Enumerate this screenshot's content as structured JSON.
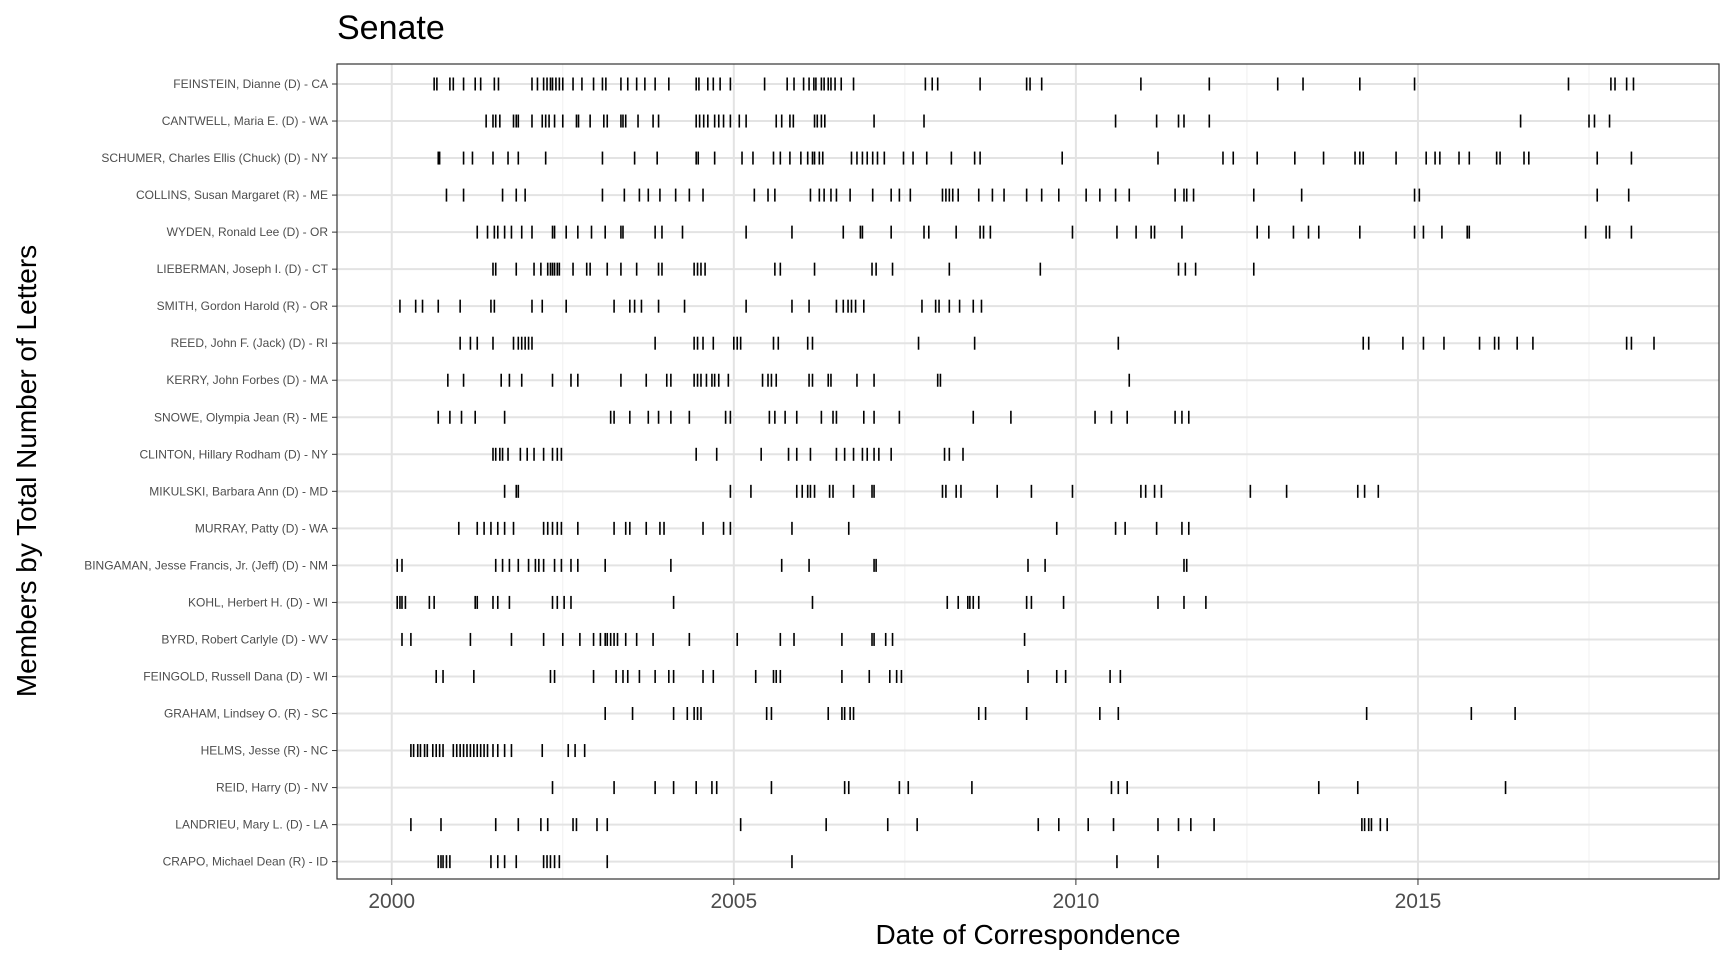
{
  "chart_data": {
    "type": "scatter",
    "mark": "tick",
    "title": "Senate",
    "xlabel": "Date of Correspondence",
    "ylabel": "Members by Total Number of Letters",
    "xlim": [
      1999.2,
      2019.4
    ],
    "xticks": [
      2000,
      2005,
      2010,
      2015
    ],
    "xtick_labels": [
      "2000",
      "2005",
      "2010",
      "2015"
    ],
    "grid": true,
    "colors": {
      "tick": "#000000",
      "grid_major": "#e3e3e3",
      "grid_minor": "#f0f0f0",
      "border": "#333333"
    },
    "series": [
      {
        "name": "FEINSTEIN, Dianne (D) - CA",
        "x": [
          2000.62,
          2000.66,
          2000.85,
          2000.9,
          2001.05,
          2001.22,
          2001.3,
          2001.5,
          2001.56,
          2002.05,
          2002.13,
          2002.22,
          2002.27,
          2002.32,
          2002.35,
          2002.4,
          2002.45,
          2002.5,
          2002.65,
          2002.78,
          2002.95,
          2003.08,
          2003.13,
          2003.35,
          2003.45,
          2003.58,
          2003.7,
          2003.85,
          2004.05,
          2004.45,
          2004.49,
          2004.62,
          2004.7,
          2004.8,
          2004.95,
          2005.45,
          2005.78,
          2005.88,
          2006.02,
          2006.1,
          2006.17,
          2006.2,
          2006.28,
          2006.32,
          2006.38,
          2006.42,
          2006.48,
          2006.57,
          2006.75,
          2007.8,
          2007.9,
          2007.98,
          2008.6,
          2009.28,
          2009.33,
          2009.5,
          2010.95,
          2011.95,
          2012.95,
          2013.32,
          2014.15,
          2014.95,
          2017.2,
          2017.82,
          2017.88,
          2018.05,
          2018.15
        ]
      },
      {
        "name": "CANTWELL, Maria E. (D) - WA",
        "x": [
          2001.38,
          2001.48,
          2001.52,
          2001.58,
          2001.78,
          2001.82,
          2001.85,
          2002.05,
          2002.2,
          2002.25,
          2002.3,
          2002.38,
          2002.5,
          2002.7,
          2002.73,
          2002.9,
          2003.1,
          2003.15,
          2003.35,
          2003.38,
          2003.42,
          2003.6,
          2003.82,
          2003.9,
          2004.45,
          2004.5,
          2004.56,
          2004.62,
          2004.72,
          2004.78,
          2004.85,
          2004.95,
          2005.08,
          2005.18,
          2005.62,
          2005.7,
          2005.82,
          2005.87,
          2006.18,
          2006.22,
          2006.28,
          2006.33,
          2007.05,
          2007.78,
          2010.58,
          2011.18,
          2011.5,
          2011.58,
          2011.95,
          2016.5,
          2017.5,
          2017.58,
          2017.8
        ]
      },
      {
        "name": "SCHUMER, Charles Ellis (Chuck) (D) - NY",
        "x": [
          2000.68,
          2000.7,
          2001.05,
          2001.18,
          2001.48,
          2001.7,
          2001.85,
          2002.25,
          2003.08,
          2003.55,
          2003.88,
          2004.45,
          2004.48,
          2004.72,
          2005.12,
          2005.28,
          2005.58,
          2005.68,
          2005.82,
          2005.98,
          2006.08,
          2006.15,
          2006.18,
          2006.25,
          2006.3,
          2006.72,
          2006.8,
          2006.88,
          2006.95,
          2007.03,
          2007.1,
          2007.2,
          2007.48,
          2007.62,
          2007.82,
          2008.18,
          2008.52,
          2008.6,
          2009.8,
          2011.2,
          2012.15,
          2012.3,
          2012.65,
          2013.2,
          2013.62,
          2014.08,
          2014.15,
          2014.2,
          2014.68,
          2015.12,
          2015.25,
          2015.32,
          2015.6,
          2015.75,
          2016.15,
          2016.2,
          2016.55,
          2016.62,
          2017.62,
          2018.12
        ]
      },
      {
        "name": "COLLINS, Susan Margaret (R) - ME",
        "x": [
          2000.8,
          2001.05,
          2001.62,
          2001.82,
          2001.95,
          2003.08,
          2003.4,
          2003.62,
          2003.75,
          2003.92,
          2004.15,
          2004.35,
          2004.55,
          2005.3,
          2005.5,
          2005.6,
          2006.12,
          2006.25,
          2006.32,
          2006.42,
          2006.5,
          2006.7,
          2007.03,
          2007.3,
          2007.42,
          2007.58,
          2008.05,
          2008.1,
          2008.15,
          2008.2,
          2008.28,
          2008.58,
          2008.78,
          2008.95,
          2009.28,
          2009.5,
          2009.75,
          2010.15,
          2010.35,
          2010.58,
          2010.78,
          2011.45,
          2011.58,
          2011.62,
          2011.72,
          2012.6,
          2013.3,
          2014.95,
          2015.02,
          2017.62,
          2018.08
        ]
      },
      {
        "name": "WYDEN, Ronald Lee (D) - OR",
        "x": [
          2001.25,
          2001.4,
          2001.5,
          2001.55,
          2001.65,
          2001.75,
          2001.9,
          2002.05,
          2002.35,
          2002.38,
          2002.55,
          2002.72,
          2002.92,
          2003.12,
          2003.35,
          2003.38,
          2003.85,
          2003.95,
          2004.25,
          2005.18,
          2005.85,
          2006.6,
          2006.85,
          2006.88,
          2007.3,
          2007.78,
          2007.85,
          2008.25,
          2008.6,
          2008.65,
          2008.75,
          2009.95,
          2010.6,
          2010.88,
          2011.1,
          2011.15,
          2011.55,
          2012.65,
          2012.82,
          2013.18,
          2013.4,
          2013.55,
          2014.15,
          2014.95,
          2015.08,
          2015.35,
          2015.72,
          2015.75,
          2017.45,
          2017.75,
          2017.8,
          2018.12
        ]
      },
      {
        "name": "LIEBERMAN, Joseph I. (D) - CT",
        "x": [
          2001.48,
          2001.52,
          2001.82,
          2002.08,
          2002.18,
          2002.28,
          2002.32,
          2002.35,
          2002.38,
          2002.42,
          2002.45,
          2002.65,
          2002.85,
          2002.9,
          2003.15,
          2003.35,
          2003.58,
          2003.9,
          2003.95,
          2004.42,
          2004.47,
          2004.52,
          2004.58,
          2005.6,
          2005.68,
          2006.18,
          2007.02,
          2007.08,
          2007.32,
          2008.15,
          2009.48,
          2011.5,
          2011.6,
          2011.75,
          2012.6
        ]
      },
      {
        "name": "SMITH, Gordon Harold (R) - OR",
        "x": [
          2000.12,
          2000.35,
          2000.45,
          2000.68,
          2001,
          2001.45,
          2001.5,
          2002.05,
          2002.2,
          2002.55,
          2003.25,
          2003.48,
          2003.55,
          2003.65,
          2003.9,
          2004.28,
          2005.18,
          2005.85,
          2006.1,
          2006.5,
          2006.6,
          2006.67,
          2006.72,
          2006.78,
          2006.9,
          2007.75,
          2007.95,
          2008,
          2008.15,
          2008.3,
          2008.5,
          2008.62
        ]
      },
      {
        "name": "REED, John F. (Jack) (D) - RI",
        "x": [
          2001,
          2001.15,
          2001.25,
          2001.48,
          2001.78,
          2001.85,
          2001.9,
          2001.95,
          2002,
          2002.05,
          2003.85,
          2004.42,
          2004.47,
          2004.55,
          2004.7,
          2005,
          2005.05,
          2005.1,
          2005.58,
          2005.65,
          2006.08,
          2006.15,
          2007.7,
          2008.52,
          2010.62,
          2014.2,
          2014.28,
          2014.78,
          2015.08,
          2015.38,
          2015.9,
          2016.12,
          2016.18,
          2016.45,
          2016.68,
          2018.05,
          2018.12,
          2018.45
        ]
      },
      {
        "name": "KERRY, John Forbes (D) - MA",
        "x": [
          2000.82,
          2001.05,
          2001.6,
          2001.72,
          2001.9,
          2002.35,
          2002.62,
          2002.72,
          2003.35,
          2003.72,
          2004.02,
          2004.08,
          2004.42,
          2004.47,
          2004.52,
          2004.6,
          2004.68,
          2004.72,
          2004.78,
          2004.92,
          2005.42,
          2005.5,
          2005.55,
          2005.62,
          2006.1,
          2006.15,
          2006.38,
          2006.42,
          2006.8,
          2007.05,
          2007.98,
          2008.02,
          2010.78
        ]
      },
      {
        "name": "SNOWE, Olympia Jean (R) - ME",
        "x": [
          2000.68,
          2000.85,
          2001.02,
          2001.22,
          2001.65,
          2003.2,
          2003.25,
          2003.48,
          2003.75,
          2003.9,
          2004.08,
          2004.35,
          2004.88,
          2004.95,
          2005.52,
          2005.6,
          2005.75,
          2005.92,
          2006.28,
          2006.45,
          2006.5,
          2006.9,
          2007.05,
          2007.42,
          2008.5,
          2009.05,
          2010.28,
          2010.52,
          2010.75,
          2011.45,
          2011.55,
          2011.65
        ]
      },
      {
        "name": "CLINTON, Hillary Rodham (D) - NY",
        "x": [
          2001.48,
          2001.52,
          2001.58,
          2001.62,
          2001.7,
          2001.88,
          2001.98,
          2002.08,
          2002.22,
          2002.35,
          2002.42,
          2002.48,
          2004.45,
          2004.75,
          2005.4,
          2005.8,
          2005.92,
          2006.12,
          2006.5,
          2006.62,
          2006.75,
          2006.88,
          2006.95,
          2007.05,
          2007.12,
          2007.3,
          2008.08,
          2008.15,
          2008.35
        ]
      },
      {
        "name": "MIKULSKI, Barbara Ann (D) - MD",
        "x": [
          2001.65,
          2001.82,
          2001.85,
          2004.95,
          2005.25,
          2005.92,
          2006,
          2006.08,
          2006.12,
          2006.18,
          2006.4,
          2006.45,
          2006.75,
          2007.02,
          2007.05,
          2008.05,
          2008.1,
          2008.25,
          2008.32,
          2008.85,
          2009.35,
          2009.95,
          2010.95,
          2011.02,
          2011.15,
          2011.25,
          2012.55,
          2013.08,
          2014.12,
          2014.22,
          2014.42
        ]
      },
      {
        "name": "MURRAY, Patty (D) - WA",
        "x": [
          2000.98,
          2001.25,
          2001.35,
          2001.45,
          2001.55,
          2001.65,
          2001.78,
          2002.22,
          2002.28,
          2002.35,
          2002.42,
          2002.48,
          2002.72,
          2003.25,
          2003.42,
          2003.48,
          2003.72,
          2003.92,
          2003.98,
          2004.55,
          2004.85,
          2004.95,
          2005.85,
          2006.68,
          2009.72,
          2010.58,
          2010.72,
          2011.18,
          2011.55,
          2011.65
        ]
      },
      {
        "name": "BINGAMAN, Jesse Francis, Jr. (Jeff) (D) - NM",
        "x": [
          2000.08,
          2000.15,
          2001.52,
          2001.62,
          2001.72,
          2001.85,
          2002,
          2002.1,
          2002.15,
          2002.22,
          2002.38,
          2002.48,
          2002.62,
          2002.72,
          2003.12,
          2004.08,
          2005.7,
          2006.1,
          2007.05,
          2007.08,
          2009.3,
          2009.55,
          2011.58,
          2011.62
        ]
      },
      {
        "name": "KOHL, Herbert H. (D) - WI",
        "x": [
          2000.08,
          2000.12,
          2000.15,
          2000.2,
          2000.55,
          2000.62,
          2001.22,
          2001.25,
          2001.48,
          2001.55,
          2001.72,
          2002.35,
          2002.42,
          2002.52,
          2002.62,
          2004.12,
          2006.15,
          2008.12,
          2008.28,
          2008.42,
          2008.45,
          2008.5,
          2008.58,
          2009.28,
          2009.35,
          2009.82,
          2011.2,
          2011.58,
          2011.9
        ]
      },
      {
        "name": "BYRD, Robert Carlyle (D) - WV",
        "x": [
          2000.15,
          2000.28,
          2001.15,
          2001.75,
          2002.22,
          2002.5,
          2002.75,
          2002.95,
          2003.05,
          2003.12,
          2003.15,
          2003.2,
          2003.25,
          2003.3,
          2003.42,
          2003.58,
          2003.82,
          2004.35,
          2005.05,
          2005.68,
          2005.88,
          2006.58,
          2007.02,
          2007.05,
          2007.22,
          2007.32,
          2009.25
        ]
      },
      {
        "name": "FEINGOLD, Russell Dana (D) - WI",
        "x": [
          2000.65,
          2000.75,
          2001.2,
          2002.32,
          2002.38,
          2002.95,
          2003.28,
          2003.38,
          2003.45,
          2003.62,
          2003.85,
          2004.05,
          2004.12,
          2004.55,
          2004.7,
          2005.32,
          2005.58,
          2005.62,
          2005.68,
          2006.58,
          2006.98,
          2007.28,
          2007.38,
          2007.45,
          2009.3,
          2009.72,
          2009.85,
          2010.5,
          2010.65
        ]
      },
      {
        "name": "GRAHAM, Lindsey O. (R) - SC",
        "x": [
          2003.12,
          2003.52,
          2004.12,
          2004.32,
          2004.42,
          2004.47,
          2004.52,
          2005.48,
          2005.55,
          2006.38,
          2006.58,
          2006.62,
          2006.7,
          2006.75,
          2008.58,
          2008.68,
          2009.28,
          2010.35,
          2010.62,
          2014.25,
          2015.78,
          2016.42
        ]
      },
      {
        "name": "HELMS, Jesse (R) - NC",
        "x": [
          2000.28,
          2000.32,
          2000.38,
          2000.42,
          2000.48,
          2000.52,
          2000.6,
          2000.65,
          2000.7,
          2000.75,
          2000.9,
          2000.95,
          2001,
          2001.05,
          2001.1,
          2001.15,
          2001.2,
          2001.25,
          2001.3,
          2001.35,
          2001.4,
          2001.48,
          2001.55,
          2001.65,
          2001.75,
          2002.2,
          2002.58,
          2002.68,
          2002.82
        ]
      },
      {
        "name": "REID, Harry (D) - NV",
        "x": [
          2002.35,
          2003.25,
          2003.85,
          2004.12,
          2004.45,
          2004.68,
          2004.75,
          2005.55,
          2006.62,
          2006.68,
          2007.42,
          2007.55,
          2008.48,
          2010.52,
          2010.62,
          2010.75,
          2013.55,
          2014.12,
          2016.28
        ]
      },
      {
        "name": "LANDRIEU, Mary L. (D) - LA",
        "x": [
          2000.28,
          2000.72,
          2001.52,
          2001.85,
          2002.18,
          2002.28,
          2002.65,
          2002.7,
          2003,
          2003.15,
          2005.1,
          2006.35,
          2007.25,
          2007.68,
          2009.45,
          2009.75,
          2010.18,
          2010.55,
          2011.2,
          2011.5,
          2011.68,
          2012.02,
          2014.18,
          2014.22,
          2014.28,
          2014.32,
          2014.45,
          2014.55
        ]
      },
      {
        "name": "CRAPO, Michael Dean (R) - ID",
        "x": [
          2000.68,
          2000.72,
          2000.75,
          2000.8,
          2000.85,
          2001.45,
          2001.55,
          2001.65,
          2001.82,
          2002.22,
          2002.27,
          2002.32,
          2002.38,
          2002.45,
          2003.15,
          2005.85,
          2010.6,
          2011.2
        ]
      }
    ]
  }
}
